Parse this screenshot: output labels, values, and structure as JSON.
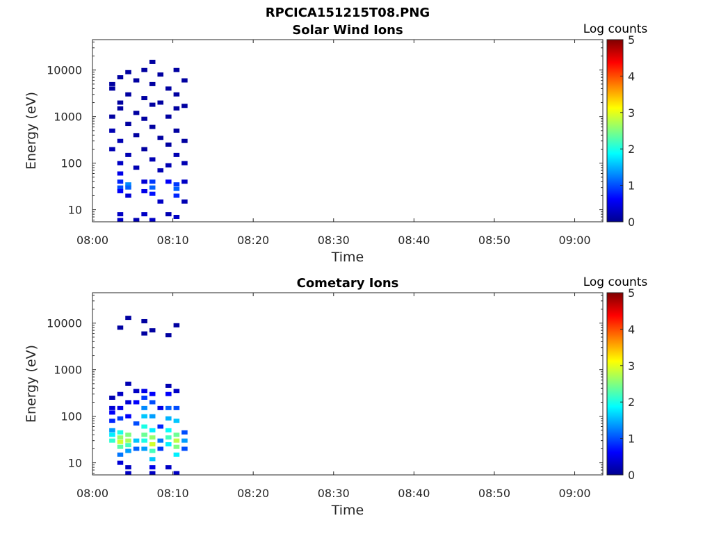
{
  "figure_title": "RPCICA151215T08.PNG",
  "colormap": [
    "#00008f",
    "#0000ff",
    "#0080ff",
    "#00ffff",
    "#80ff80",
    "#ffff00",
    "#ff8000",
    "#ff0000",
    "#800000"
  ],
  "chart_data": [
    {
      "type": "heatmap",
      "title": "Solar Wind Ions",
      "xlabel": "Time",
      "ylabel": "Energy (eV)",
      "x_ticks": [
        "08:00",
        "08:10",
        "08:20",
        "08:30",
        "08:40",
        "08:50",
        "09:00"
      ],
      "y_ticks": [
        "10",
        "100",
        "1000",
        "10000"
      ],
      "ylim": [
        5.5,
        45000
      ],
      "y_scale": "log",
      "colorbar_label": "Log counts",
      "colorbar_ticks": [
        "0",
        "1",
        "2",
        "3",
        "4",
        "5"
      ],
      "clim": [
        0,
        5
      ],
      "cells": [
        [
          "08:02",
          "500",
          0.2
        ],
        [
          "08:02",
          "200",
          0.2
        ],
        [
          "08:02",
          "1000",
          0.1
        ],
        [
          "08:02",
          "4000",
          0.1
        ],
        [
          "08:02",
          "5000",
          0.1
        ],
        [
          "08:03",
          "7000",
          0.1
        ],
        [
          "08:03",
          "2000",
          0.1
        ],
        [
          "08:03",
          "300",
          0.2
        ],
        [
          "08:03",
          "60",
          0.5
        ],
        [
          "08:03",
          "40",
          0.8
        ],
        [
          "08:03",
          "30",
          1.0
        ],
        [
          "08:03",
          "25",
          0.6
        ],
        [
          "08:03",
          "8",
          0.3
        ],
        [
          "08:03",
          "6",
          0.3
        ],
        [
          "08:03",
          "1500",
          0.1
        ],
        [
          "08:03",
          "100",
          0.3
        ],
        [
          "08:04",
          "9000",
          0.1
        ],
        [
          "08:04",
          "3000",
          0.1
        ],
        [
          "08:04",
          "700",
          0.1
        ],
        [
          "08:04",
          "150",
          0.2
        ],
        [
          "08:04",
          "35",
          1.3
        ],
        [
          "08:04",
          "30",
          1.1
        ],
        [
          "08:04",
          "20",
          0.4
        ],
        [
          "08:05",
          "6000",
          0.1
        ],
        [
          "08:05",
          "1200",
          0.1
        ],
        [
          "08:05",
          "400",
          0.1
        ],
        [
          "08:05",
          "80",
          0.2
        ],
        [
          "08:05",
          "6",
          0.2
        ],
        [
          "08:06",
          "10000",
          0.1
        ],
        [
          "08:06",
          "2500",
          0.1
        ],
        [
          "08:06",
          "900",
          0.1
        ],
        [
          "08:06",
          "200",
          0.1
        ],
        [
          "08:06",
          "40",
          0.4
        ],
        [
          "08:06",
          "25",
          0.5
        ],
        [
          "08:06",
          "8",
          0.3
        ],
        [
          "08:07",
          "15000",
          0.1
        ],
        [
          "08:07",
          "5000",
          0.1
        ],
        [
          "08:07",
          "1800",
          0.1
        ],
        [
          "08:07",
          "600",
          0.1
        ],
        [
          "08:07",
          "120",
          0.2
        ],
        [
          "08:07",
          "40",
          0.9
        ],
        [
          "08:07",
          "30",
          1.1
        ],
        [
          "08:07",
          "22",
          0.7
        ],
        [
          "08:07",
          "6",
          0.3
        ],
        [
          "08:08",
          "8000",
          0.1
        ],
        [
          "08:08",
          "2000",
          0.1
        ],
        [
          "08:08",
          "350",
          0.1
        ],
        [
          "08:08",
          "70",
          0.2
        ],
        [
          "08:08",
          "15",
          0.3
        ],
        [
          "08:09",
          "4000",
          0.1
        ],
        [
          "08:09",
          "1000",
          0.1
        ],
        [
          "08:09",
          "250",
          0.1
        ],
        [
          "08:09",
          "90",
          0.2
        ],
        [
          "08:09",
          "40",
          0.6
        ],
        [
          "08:09",
          "8",
          0.2
        ],
        [
          "08:10",
          "10000",
          0.1
        ],
        [
          "08:10",
          "3000",
          0.1
        ],
        [
          "08:10",
          "1500",
          0.1
        ],
        [
          "08:10",
          "500",
          0.1
        ],
        [
          "08:10",
          "150",
          0.2
        ],
        [
          "08:10",
          "35",
          0.9
        ],
        [
          "08:10",
          "28",
          1.1
        ],
        [
          "08:10",
          "20",
          0.8
        ],
        [
          "08:10",
          "7",
          0.3
        ],
        [
          "08:11",
          "6000",
          0.1
        ],
        [
          "08:11",
          "1700",
          0.1
        ],
        [
          "08:11",
          "300",
          0.1
        ],
        [
          "08:11",
          "100",
          0.2
        ],
        [
          "08:11",
          "40",
          0.3
        ],
        [
          "08:11",
          "15",
          0.2
        ]
      ]
    },
    {
      "type": "heatmap",
      "title": "Cometary Ions",
      "xlabel": "Time",
      "ylabel": "Energy (eV)",
      "x_ticks": [
        "08:00",
        "08:10",
        "08:20",
        "08:30",
        "08:40",
        "08:50",
        "09:00"
      ],
      "y_ticks": [
        "10",
        "100",
        "1000",
        "10000"
      ],
      "ylim": [
        5.5,
        45000
      ],
      "y_scale": "log",
      "colorbar_label": "Log counts",
      "colorbar_ticks": [
        "0",
        "1",
        "2",
        "3",
        "4",
        "5"
      ],
      "clim": [
        0,
        5
      ],
      "cells": [
        [
          "08:02",
          "250",
          0.2
        ],
        [
          "08:02",
          "150",
          0.4
        ],
        [
          "08:02",
          "120",
          0.6
        ],
        [
          "08:02",
          "80",
          0.8
        ],
        [
          "08:02",
          "50",
          1.4
        ],
        [
          "08:02",
          "40",
          1.8
        ],
        [
          "08:02",
          "30",
          2.1
        ],
        [
          "08:03",
          "8000",
          0.1
        ],
        [
          "08:03",
          "300",
          0.3
        ],
        [
          "08:03",
          "150",
          0.5
        ],
        [
          "08:03",
          "90",
          0.9
        ],
        [
          "08:03",
          "45",
          2.0
        ],
        [
          "08:03",
          "35",
          2.6
        ],
        [
          "08:03",
          "28",
          2.9
        ],
        [
          "08:03",
          "22",
          2.3
        ],
        [
          "08:03",
          "15",
          1.2
        ],
        [
          "08:03",
          "10",
          0.4
        ],
        [
          "08:04",
          "13000",
          0.1
        ],
        [
          "08:04",
          "500",
          0.2
        ],
        [
          "08:04",
          "200",
          0.4
        ],
        [
          "08:04",
          "100",
          0.6
        ],
        [
          "08:04",
          "40",
          2.5
        ],
        [
          "08:04",
          "30",
          2.7
        ],
        [
          "08:04",
          "24",
          2.2
        ],
        [
          "08:04",
          "18",
          1.4
        ],
        [
          "08:04",
          "8",
          0.3
        ],
        [
          "08:04",
          "6",
          0.3
        ],
        [
          "08:05",
          "350",
          0.3
        ],
        [
          "08:05",
          "200",
          0.6
        ],
        [
          "08:05",
          "70",
          1.0
        ],
        [
          "08:05",
          "30",
          1.6
        ],
        [
          "08:05",
          "20",
          1.1
        ],
        [
          "08:06",
          "11000",
          0.1
        ],
        [
          "08:06",
          "6000",
          0.1
        ],
        [
          "08:06",
          "350",
          0.5
        ],
        [
          "08:06",
          "250",
          0.9
        ],
        [
          "08:06",
          "150",
          1.3
        ],
        [
          "08:06",
          "100",
          1.6
        ],
        [
          "08:06",
          "60",
          2.0
        ],
        [
          "08:06",
          "40",
          2.4
        ],
        [
          "08:06",
          "30",
          2.0
        ],
        [
          "08:06",
          "20",
          1.4
        ],
        [
          "08:07",
          "7000",
          0.1
        ],
        [
          "08:07",
          "300",
          0.6
        ],
        [
          "08:07",
          "200",
          1.0
        ],
        [
          "08:07",
          "100",
          1.4
        ],
        [
          "08:07",
          "50",
          1.8
        ],
        [
          "08:07",
          "35",
          2.6
        ],
        [
          "08:07",
          "25",
          2.9
        ],
        [
          "08:07",
          "18",
          2.2
        ],
        [
          "08:07",
          "12",
          1.6
        ],
        [
          "08:07",
          "8",
          0.5
        ],
        [
          "08:07",
          "6",
          0.3
        ],
        [
          "08:08",
          "150",
          0.5
        ],
        [
          "08:08",
          "60",
          0.8
        ],
        [
          "08:08",
          "30",
          1.2
        ],
        [
          "08:08",
          "20",
          0.9
        ],
        [
          "08:09",
          "5500",
          0.1
        ],
        [
          "08:09",
          "450",
          0.2
        ],
        [
          "08:09",
          "300",
          0.6
        ],
        [
          "08:09",
          "150",
          1.1
        ],
        [
          "08:09",
          "90",
          1.5
        ],
        [
          "08:09",
          "50",
          1.9
        ],
        [
          "08:09",
          "35",
          2.2
        ],
        [
          "08:09",
          "25",
          1.8
        ],
        [
          "08:09",
          "8",
          0.3
        ],
        [
          "08:10",
          "9000",
          0.1
        ],
        [
          "08:10",
          "350",
          0.3
        ],
        [
          "08:10",
          "150",
          1.0
        ],
        [
          "08:10",
          "80",
          1.6
        ],
        [
          "08:10",
          "40",
          2.4
        ],
        [
          "08:10",
          "30",
          2.8
        ],
        [
          "08:10",
          "22",
          2.5
        ],
        [
          "08:10",
          "15",
          1.8
        ],
        [
          "08:10",
          "6",
          0.3
        ],
        [
          "08:11",
          "45",
          1.0
        ],
        [
          "08:11",
          "30",
          1.4
        ],
        [
          "08:11",
          "20",
          1.0
        ]
      ]
    }
  ]
}
